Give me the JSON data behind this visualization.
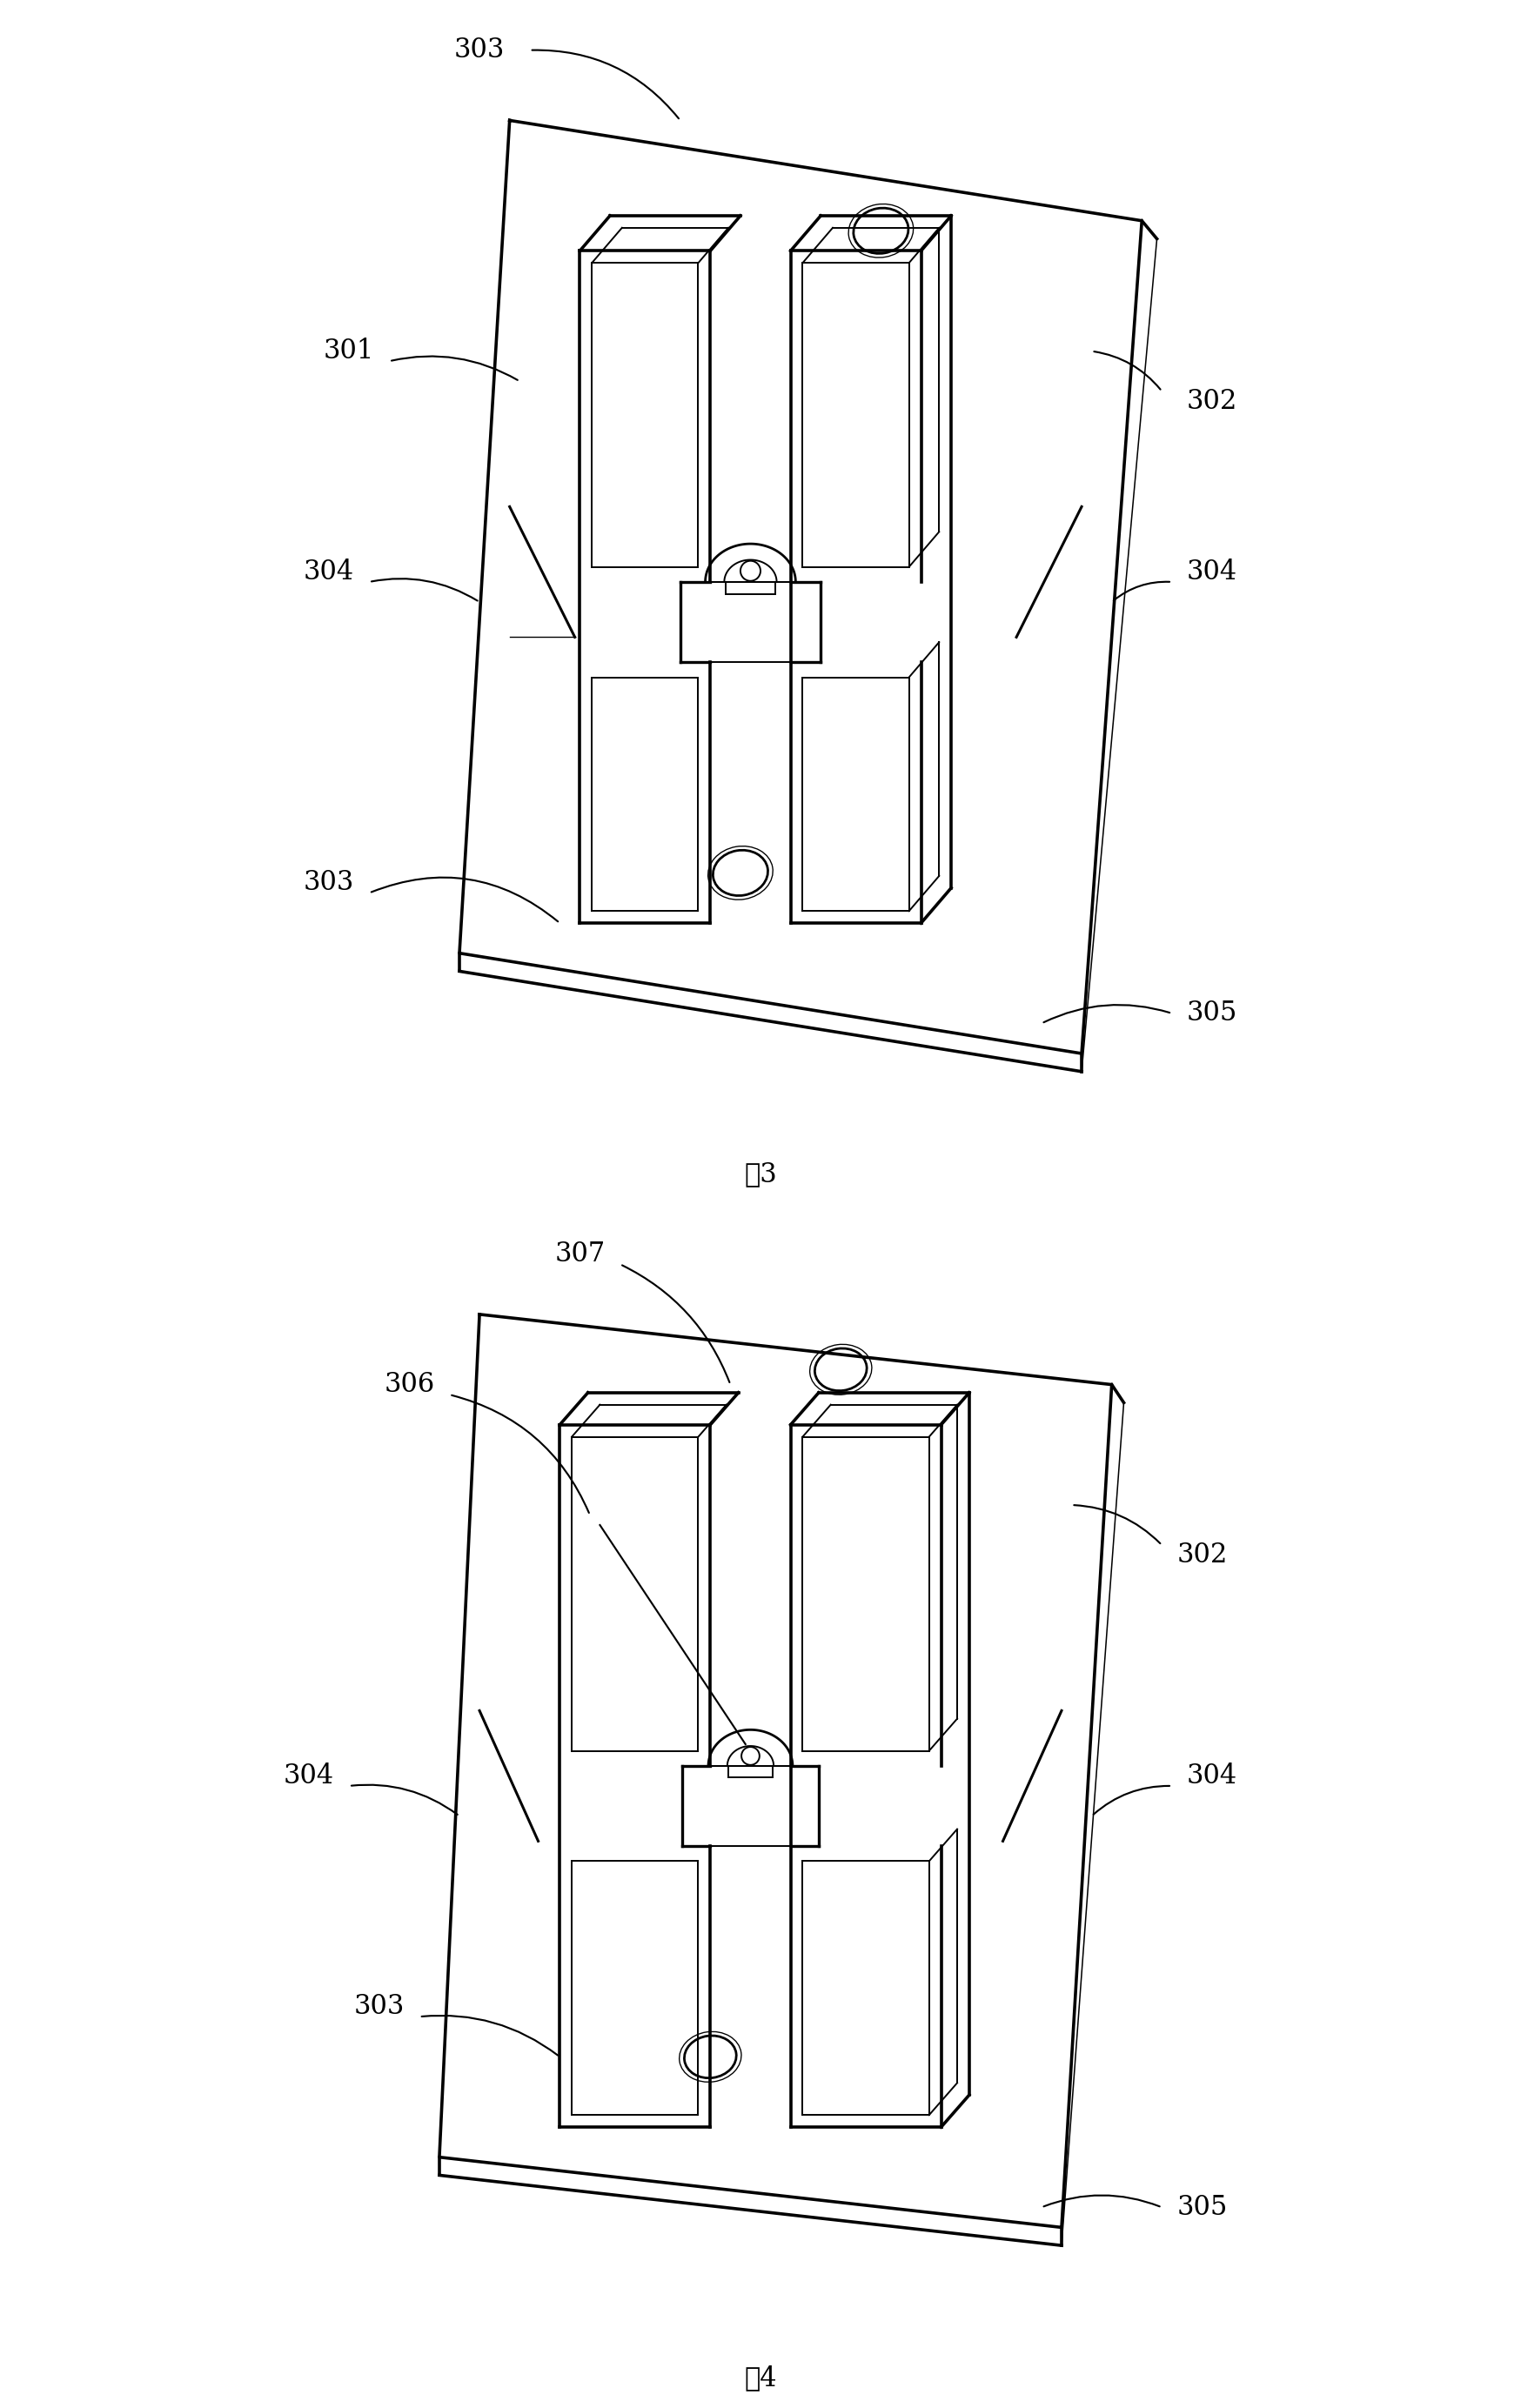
{
  "fig_width": 17.48,
  "fig_height": 27.68,
  "bg_color": "#ffffff",
  "line_color": "#000000",
  "lw_main": 2.0,
  "lw_thin": 1.4,
  "fig3_caption": "图3",
  "fig4_caption": "图4",
  "font_size_label": 22,
  "font_size_caption": 22
}
